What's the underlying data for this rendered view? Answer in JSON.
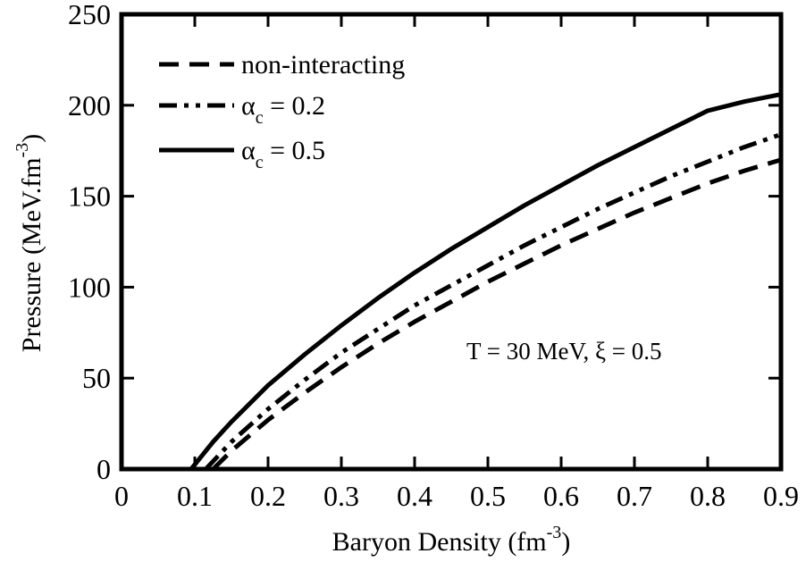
{
  "chart_data": {
    "type": "line",
    "title": "",
    "xlabel": "Baryon Density (fm",
    "xlabel_sup": "-3",
    "xlabel_close": ")",
    "ylabel": "Pressure (MeV.fm",
    "ylabel_sup": "-3",
    "ylabel_close": ")",
    "xlim": [
      0,
      0.9
    ],
    "ylim": [
      0,
      250
    ],
    "x_ticks": [
      0,
      0.1,
      0.2,
      0.3,
      0.4,
      0.5,
      0.6,
      0.7,
      0.8,
      0.9
    ],
    "x_tick_labels": [
      "0",
      "0.1",
      "0.2",
      "0.3",
      "0.4",
      "0.5",
      "0.6",
      "0.7",
      "0.8",
      "0.9"
    ],
    "y_ticks": [
      0,
      50,
      100,
      150,
      200,
      250
    ],
    "y_tick_labels": [
      "0",
      "50",
      "100",
      "150",
      "200",
      "250"
    ],
    "grid": false,
    "legend_position": "top-left",
    "annotation": "T = 30 MeV, ξ = 0.5",
    "series": [
      {
        "name": "non-interacting",
        "legend_main": "non-interacting",
        "legend_sub": "",
        "legend_tail": "",
        "style": "dashed",
        "x": [
          0.125,
          0.15,
          0.2,
          0.25,
          0.3,
          0.35,
          0.4,
          0.45,
          0.5,
          0.55,
          0.6,
          0.65,
          0.7,
          0.75,
          0.8,
          0.85,
          0.9
        ],
        "y": [
          0,
          10,
          27,
          42,
          56,
          69,
          81,
          92,
          103,
          113,
          123,
          132,
          141,
          149,
          157,
          164,
          170
        ]
      },
      {
        "name": "αc = 0.2",
        "legend_main": "α",
        "legend_sub": "c",
        "legend_tail": " = 0.2",
        "style": "dash-dot-dot",
        "x": [
          0.115,
          0.15,
          0.2,
          0.25,
          0.3,
          0.35,
          0.4,
          0.45,
          0.5,
          0.55,
          0.6,
          0.65,
          0.7,
          0.75,
          0.8,
          0.85,
          0.9
        ],
        "y": [
          0,
          15,
          33,
          49,
          64,
          77,
          90,
          101,
          112,
          123,
          133,
          143,
          152,
          161,
          169,
          177,
          184
        ]
      },
      {
        "name": "αc = 0.5",
        "legend_main": "α",
        "legend_sub": "c",
        "legend_tail": " = 0.5",
        "style": "solid",
        "x": [
          0.095,
          0.125,
          0.15,
          0.2,
          0.25,
          0.3,
          0.35,
          0.4,
          0.45,
          0.5,
          0.55,
          0.6,
          0.65,
          0.7,
          0.75,
          0.8,
          0.85,
          0.9
        ],
        "y": [
          0,
          15,
          26,
          46,
          63,
          79,
          94,
          108,
          121,
          133,
          145,
          156,
          167,
          177,
          187,
          197,
          202,
          206
        ]
      }
    ]
  }
}
